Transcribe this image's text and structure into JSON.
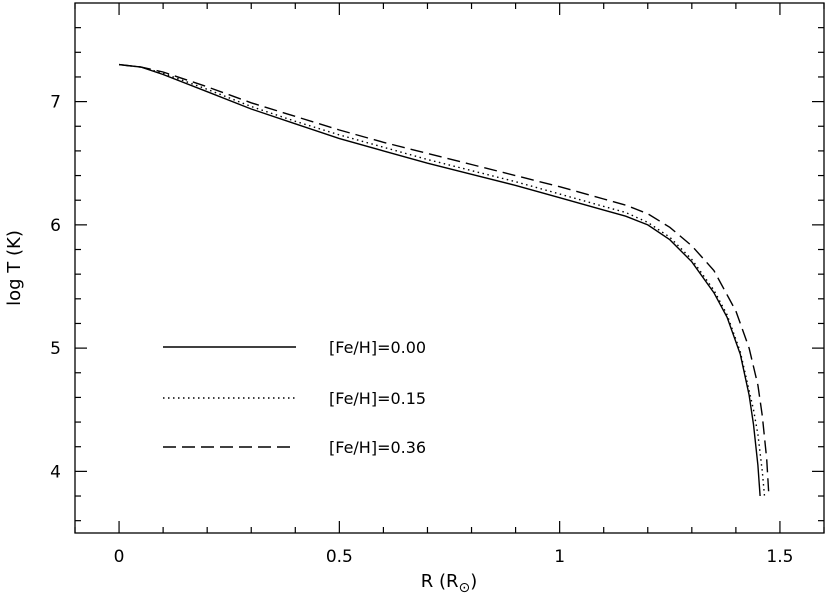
{
  "chart_data": {
    "type": "line",
    "title": "",
    "xlabel": "R  (R",
    "xlabel_symbol": "⊙",
    "xlabel_close": ")",
    "ylabel": "log T (K)",
    "xlim": [
      -0.1,
      1.6
    ],
    "ylim": [
      3.5,
      7.8
    ],
    "x_ticks": [
      0,
      0.5,
      1,
      1.5
    ],
    "x_tick_labels": [
      "0",
      "0.5",
      "1",
      "1.5"
    ],
    "y_ticks": [
      4,
      5,
      6,
      7
    ],
    "y_tick_labels": [
      "4",
      "5",
      "6",
      "7"
    ],
    "grid": false,
    "legend_position": "lower-left",
    "series": [
      {
        "name": "[Fe/H]=0.00",
        "style": "solid",
        "x": [
          0,
          0.05,
          0.1,
          0.2,
          0.3,
          0.4,
          0.5,
          0.6,
          0.7,
          0.8,
          0.9,
          1.0,
          1.1,
          1.15,
          1.2,
          1.25,
          1.3,
          1.35,
          1.38,
          1.41,
          1.43,
          1.44,
          1.45,
          1.455
        ],
        "y": [
          7.3,
          7.28,
          7.22,
          7.08,
          6.94,
          6.82,
          6.7,
          6.6,
          6.5,
          6.41,
          6.32,
          6.22,
          6.12,
          6.07,
          6.0,
          5.88,
          5.7,
          5.45,
          5.25,
          4.95,
          4.62,
          4.38,
          4.05,
          3.8
        ]
      },
      {
        "name": "[Fe/H]=0.15",
        "style": "dotted",
        "x": [
          0,
          0.05,
          0.1,
          0.2,
          0.3,
          0.4,
          0.5,
          0.6,
          0.7,
          0.8,
          0.9,
          1.0,
          1.1,
          1.15,
          1.2,
          1.25,
          1.3,
          1.35,
          1.38,
          1.41,
          1.44,
          1.45,
          1.46,
          1.465
        ],
        "y": [
          7.3,
          7.28,
          7.23,
          7.1,
          6.96,
          6.84,
          6.73,
          6.63,
          6.53,
          6.44,
          6.35,
          6.25,
          6.15,
          6.1,
          6.02,
          5.9,
          5.72,
          5.47,
          5.27,
          4.97,
          4.5,
          4.3,
          4.0,
          3.8
        ]
      },
      {
        "name": "[Fe/H]=0.36",
        "style": "dashed",
        "x": [
          0,
          0.05,
          0.1,
          0.2,
          0.3,
          0.4,
          0.5,
          0.6,
          0.7,
          0.8,
          0.9,
          1.0,
          1.1,
          1.15,
          1.2,
          1.25,
          1.3,
          1.35,
          1.4,
          1.43,
          1.45,
          1.46,
          1.47,
          1.475
        ],
        "y": [
          7.3,
          7.28,
          7.24,
          7.12,
          6.99,
          6.88,
          6.77,
          6.67,
          6.58,
          6.49,
          6.4,
          6.31,
          6.21,
          6.16,
          6.09,
          5.98,
          5.83,
          5.63,
          5.3,
          5.0,
          4.7,
          4.45,
          4.1,
          3.8
        ]
      }
    ]
  }
}
